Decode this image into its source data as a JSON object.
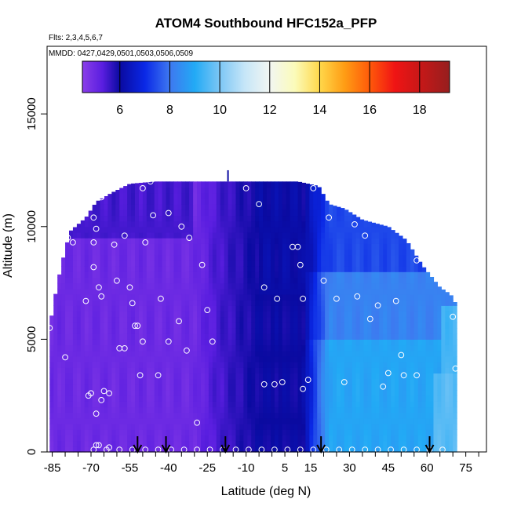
{
  "chart_data": {
    "type": "heatmap",
    "title": "ATOM4 Southbound HFC152a_PFP",
    "flights_label": "Flts: 2,3,4,5,6,7",
    "dates_label": "MMDD: 0427,0429,0501,0503,0506,0509",
    "xlabel": "Latitude (deg N)",
    "ylabel": "Altitude (m)",
    "xlim": [
      -87,
      83
    ],
    "ylim": [
      0,
      18000
    ],
    "xticks": [
      -85,
      -70,
      -55,
      -40,
      -25,
      -10,
      5,
      15,
      30,
      45,
      60,
      75
    ],
    "xtick_labels": [
      "-85",
      "-70",
      "-55",
      "-40",
      "-25",
      "-10",
      "5",
      "15",
      "30",
      "45",
      "60",
      "75"
    ],
    "yticks": [
      0,
      5000,
      10000,
      15000
    ],
    "ytick_labels": [
      "0",
      "5000",
      "10000",
      "15000"
    ],
    "colorbar": {
      "min": 4.5,
      "max": 19.2,
      "ticks": [
        6,
        8,
        10,
        12,
        14,
        16,
        18
      ],
      "tick_labels": [
        "6",
        "8",
        "10",
        "12",
        "14",
        "16",
        "18"
      ],
      "stops": [
        {
          "v": 4.5,
          "c": "#8a3ee8"
        },
        {
          "v": 5.3,
          "c": "#5a1ee0"
        },
        {
          "v": 6.0,
          "c": "#0a0aa0"
        },
        {
          "v": 7.0,
          "c": "#0a28e6"
        },
        {
          "v": 8.0,
          "c": "#3e78f0"
        },
        {
          "v": 9.0,
          "c": "#22aaf5"
        },
        {
          "v": 10.0,
          "c": "#7cc6f5"
        },
        {
          "v": 11.0,
          "c": "#c6e6f8"
        },
        {
          "v": 12.0,
          "c": "#f2f6f2"
        },
        {
          "v": 13.0,
          "c": "#fbfbba"
        },
        {
          "v": 14.0,
          "c": "#ffd84a"
        },
        {
          "v": 15.0,
          "c": "#ff9c14"
        },
        {
          "v": 16.0,
          "c": "#ff5a0a"
        },
        {
          "v": 17.0,
          "c": "#f01414"
        },
        {
          "v": 18.0,
          "c": "#c81818"
        },
        {
          "v": 19.2,
          "c": "#961e1e"
        }
      ]
    },
    "profile_arrows_lat": [
      -52,
      -41,
      -18,
      19,
      61
    ],
    "samples": [
      [
        -86,
        5500
      ],
      [
        -80,
        4200
      ],
      [
        -79,
        9500
      ],
      [
        -77,
        9300
      ],
      [
        -72,
        6700
      ],
      [
        -71,
        2500
      ],
      [
        -70,
        2600
      ],
      [
        -68,
        1700
      ],
      [
        -68,
        300
      ],
      [
        -67,
        300
      ],
      [
        -66,
        11300
      ],
      [
        -69,
        10400
      ],
      [
        -69,
        9300
      ],
      [
        -68,
        9900
      ],
      [
        -69,
        8200
      ],
      [
        -67,
        7300
      ],
      [
        -66,
        6900
      ],
      [
        -65,
        2700
      ],
      [
        -66,
        2300
      ],
      [
        -63,
        2600
      ],
      [
        -63,
        200
      ],
      [
        -61,
        9200
      ],
      [
        -60,
        7600
      ],
      [
        -59,
        4600
      ],
      [
        -57,
        4600
      ],
      [
        -57,
        9600
      ],
      [
        -55,
        7300
      ],
      [
        -54,
        6600
      ],
      [
        -53,
        5600
      ],
      [
        -52,
        5600
      ],
      [
        -51,
        3400
      ],
      [
        -50,
        4900
      ],
      [
        -49,
        9300
      ],
      [
        -50,
        11700
      ],
      [
        -47,
        12000
      ],
      [
        -46,
        10500
      ],
      [
        -44,
        3400
      ],
      [
        -43,
        6800
      ],
      [
        -40,
        10600
      ],
      [
        -40,
        4900
      ],
      [
        -36,
        5800
      ],
      [
        -35,
        10000
      ],
      [
        -33,
        4500
      ],
      [
        -32,
        9500
      ],
      [
        -29,
        1300
      ],
      [
        -27,
        8300
      ],
      [
        -25,
        6300
      ],
      [
        -23,
        4900
      ],
      [
        -10,
        11700
      ],
      [
        -5,
        11000
      ],
      [
        -3,
        7300
      ],
      [
        -3,
        3000
      ],
      [
        1,
        3000
      ],
      [
        2,
        6800
      ],
      [
        4,
        3100
      ],
      [
        8,
        9100
      ],
      [
        10,
        9100
      ],
      [
        11,
        8300
      ],
      [
        12,
        6800
      ],
      [
        12,
        2800
      ],
      [
        14,
        3200
      ],
      [
        16,
        11700
      ],
      [
        20,
        7600
      ],
      [
        22,
        10400
      ],
      [
        25,
        6800
      ],
      [
        28,
        3100
      ],
      [
        32,
        10100
      ],
      [
        33,
        6900
      ],
      [
        36,
        9600
      ],
      [
        38,
        5900
      ],
      [
        41,
        6500
      ],
      [
        43,
        2900
      ],
      [
        45,
        3500
      ],
      [
        48,
        6700
      ],
      [
        50,
        4300
      ],
      [
        51,
        3400
      ],
      [
        54,
        9800
      ],
      [
        56,
        8500
      ],
      [
        56,
        3400
      ],
      [
        70,
        6000
      ],
      [
        71,
        3700
      ]
    ]
  }
}
